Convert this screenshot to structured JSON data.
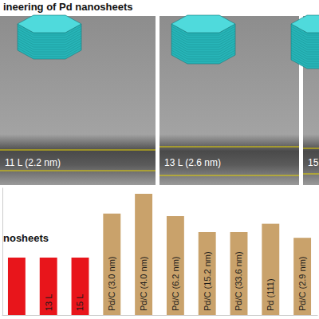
{
  "header": {
    "title": "ineering of Pd nanosheets"
  },
  "images": [
    {
      "label": "11 L (2.2 nm)"
    },
    {
      "label": "13 L (2.6 nm)"
    },
    {
      "label": "15"
    }
  ],
  "chart_data": {
    "type": "bar",
    "annotations": [
      "nosheets"
    ],
    "categories": [
      null,
      "13 L",
      "15 L",
      "Pd/C (3.0 nm)",
      "Pd/C (4.0 nm)",
      "Pd/C (6.2 nm)",
      "Pd/C (15.2 nm)",
      "Pd/C (33.6 nm)",
      "Pd (111)",
      "Pd/C (2.9 nm)"
    ],
    "values": [
      90,
      90,
      90,
      159,
      190,
      155,
      130,
      130,
      143,
      121
    ],
    "colors": [
      "#e8151b",
      "#e8151b",
      "#e8151b",
      "#c9a26b",
      "#c9a26b",
      "#c9a26b",
      "#c9a26b",
      "#c9a26b",
      "#c9a26b",
      "#c9a26b"
    ],
    "ylim": [
      0,
      200
    ],
    "tick_labels": "x",
    "grid": false
  }
}
